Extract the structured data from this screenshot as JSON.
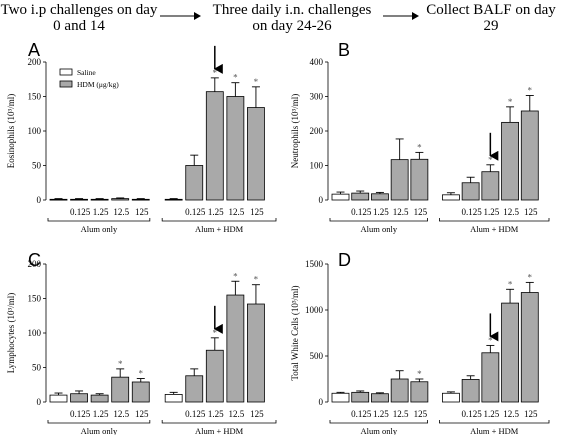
{
  "timeline": {
    "step1": "Two i.p challenges on day 0 and 14",
    "step2": "Three daily i.n. challenges on day 24-26",
    "step3": "Collect BALF on day 29"
  },
  "colors": {
    "saline_fill": "#ffffff",
    "hdm_fill": "#a9a9a9",
    "axis": "#000000",
    "significance_star": "#555555"
  },
  "chart_data": [
    {
      "type": "bar",
      "panel": "A",
      "ylabel": "Eosinophils (10^3/ml)",
      "ylim": [
        0,
        200
      ],
      "yticks": [
        0,
        50,
        100,
        150,
        200
      ],
      "legend": {
        "position": "top-left",
        "entries": [
          "Saline",
          "HDM (μg/kg)"
        ]
      },
      "categories": [
        "",
        "0.125",
        "1.25",
        "12.5",
        "125",
        "",
        "0.125",
        "1.25",
        "12.5",
        "125"
      ],
      "groups": [
        "Alum only",
        "Alum + HDM"
      ],
      "bar_colors": [
        "saline",
        "hdm",
        "hdm",
        "hdm",
        "hdm",
        "saline",
        "hdm",
        "hdm",
        "hdm",
        "hdm"
      ],
      "values": [
        1,
        1,
        1,
        2,
        1,
        1,
        50,
        157,
        150,
        134
      ],
      "errors": [
        1,
        1,
        1,
        1,
        1,
        1,
        15,
        20,
        20,
        30
      ],
      "significant": [
        false,
        false,
        false,
        false,
        false,
        false,
        false,
        true,
        true,
        true
      ],
      "arrow_index": 7
    },
    {
      "type": "bar",
      "panel": "B",
      "ylabel": "Neutrophils (10^3/ml)",
      "ylim": [
        0,
        400
      ],
      "yticks": [
        0,
        100,
        200,
        300,
        400
      ],
      "categories": [
        "",
        "0.125",
        "1.25",
        "12.5",
        "125",
        "",
        "0.125",
        "1.25",
        "12.5",
        "125"
      ],
      "groups": [
        "Alum only",
        "Alum + HDM"
      ],
      "bar_colors": [
        "saline",
        "hdm",
        "hdm",
        "hdm",
        "hdm",
        "saline",
        "hdm",
        "hdm",
        "hdm",
        "hdm"
      ],
      "values": [
        17,
        20,
        18,
        117,
        118,
        15,
        50,
        82,
        225,
        258
      ],
      "errors": [
        6,
        6,
        4,
        60,
        20,
        6,
        16,
        20,
        45,
        45
      ],
      "significant": [
        false,
        false,
        false,
        false,
        true,
        false,
        false,
        true,
        true,
        true
      ],
      "arrow_index": 7
    },
    {
      "type": "bar",
      "panel": "C",
      "ylabel": "Lymphocytes (10^3/ml)",
      "ylim": [
        0,
        200
      ],
      "yticks": [
        0,
        50,
        100,
        150,
        200
      ],
      "categories": [
        "",
        "0.125",
        "1.25",
        "12.5",
        "125",
        "",
        "0.125",
        "1.25",
        "12.5",
        "125"
      ],
      "groups": [
        "Alum only",
        "Alum + HDM"
      ],
      "bar_colors": [
        "saline",
        "hdm",
        "hdm",
        "hdm",
        "hdm",
        "saline",
        "hdm",
        "hdm",
        "hdm",
        "hdm"
      ],
      "values": [
        10,
        12,
        10,
        36,
        29,
        11,
        38,
        75,
        155,
        142
      ],
      "errors": [
        3,
        4,
        2,
        12,
        5,
        3,
        10,
        18,
        20,
        28
      ],
      "significant": [
        false,
        false,
        false,
        true,
        true,
        false,
        false,
        true,
        true,
        true
      ],
      "arrow_index": 7
    },
    {
      "type": "bar",
      "panel": "D",
      "ylabel": "Total White Cells (10^3/ml)",
      "ylim": [
        0,
        1500
      ],
      "yticks": [
        0,
        500,
        1000,
        1500
      ],
      "categories": [
        "",
        "0.125",
        "1.25",
        "12.5",
        "125",
        "",
        "0.125",
        "1.25",
        "12.5",
        "125"
      ],
      "groups": [
        "Alum only",
        "Alum + HDM"
      ],
      "bar_colors": [
        "saline",
        "hdm",
        "hdm",
        "hdm",
        "hdm",
        "saline",
        "hdm",
        "hdm",
        "hdm",
        "hdm"
      ],
      "values": [
        95,
        105,
        90,
        250,
        220,
        95,
        245,
        535,
        1075,
        1190
      ],
      "errors": [
        10,
        15,
        10,
        90,
        30,
        15,
        40,
        80,
        150,
        110
      ],
      "significant": [
        false,
        false,
        false,
        false,
        true,
        false,
        false,
        true,
        true,
        true
      ],
      "arrow_index": 7
    }
  ]
}
